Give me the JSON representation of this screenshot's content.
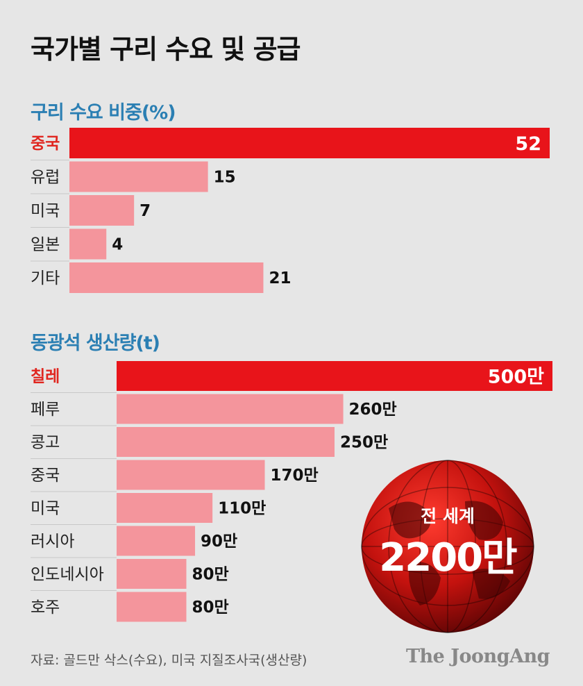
{
  "title": "국가별 구리 수요 및 공급",
  "colors": {
    "highlight": "#e8141a",
    "bar": "#f4959c",
    "section_title": "#2b7fb3"
  },
  "chart_data": [
    {
      "type": "bar",
      "orientation": "horizontal",
      "title": "구리 수요 비중(%)",
      "categories": [
        "중국",
        "유럽",
        "미국",
        "일본",
        "기타"
      ],
      "values": [
        52,
        15,
        7,
        4,
        21
      ],
      "value_labels": [
        "52",
        "15",
        "7",
        "4",
        "21"
      ],
      "highlight_index": 0,
      "xlim": [
        0,
        52
      ]
    },
    {
      "type": "bar",
      "orientation": "horizontal",
      "title": "동광석 생산량(t)",
      "categories": [
        "칠레",
        "페루",
        "콩고",
        "중국",
        "미국",
        "러시아",
        "인도네시아",
        "호주"
      ],
      "values": [
        5000000,
        2600000,
        2500000,
        1700000,
        1100000,
        900000,
        800000,
        800000
      ],
      "value_labels": [
        "500만",
        "260만",
        "250만",
        "170만",
        "110만",
        "90만",
        "80만",
        "80만"
      ],
      "highlight_index": 0,
      "xlim": [
        0,
        5000000
      ]
    }
  ],
  "world_total": {
    "label": "전 세계",
    "value": "2200만"
  },
  "source": "자료: 골드만 삭스(수요), 미국 지질조사국(생산량)",
  "brand": "The JoongAng"
}
